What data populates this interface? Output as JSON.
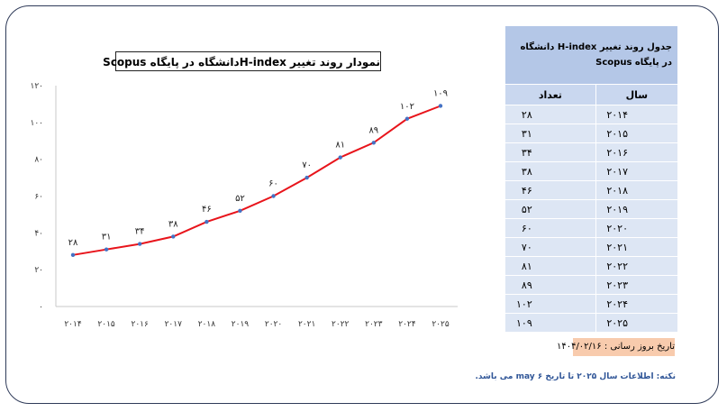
{
  "chart_data": {
    "type": "line",
    "title": "نمودار روند تغییر  H-indexدانشگاه در پایگاه Scopus",
    "categories": [
      "۲۰۱۴",
      "۲۰۱۵",
      "۲۰۱۶",
      "۲۰۱۷",
      "۲۰۱۸",
      "۲۰۱۹",
      "۲۰۲۰",
      "۲۰۲۱",
      "۲۰۲۲",
      "۲۰۲۳",
      "۲۰۲۴",
      "۲۰۲۵"
    ],
    "values": [
      28,
      31,
      34,
      38,
      46,
      52,
      60,
      70,
      81,
      89,
      102,
      109
    ],
    "value_labels": [
      "۲۸",
      "۳۱",
      "۳۴",
      "۳۸",
      "۴۶",
      "۵۲",
      "۶۰",
      "۷۰",
      "۸۱",
      "۸۹",
      "۱۰۲",
      "۱۰۹"
    ],
    "ylim": [
      0,
      120
    ],
    "yticks": [
      0,
      20,
      40,
      60,
      80,
      100,
      120
    ],
    "ytick_labels": [
      "۰",
      "۲۰",
      "۴۰",
      "۶۰",
      "۸۰",
      "۱۰۰",
      "۱۲۰"
    ],
    "line_color": "#e8141b",
    "marker_color": "#4472c4",
    "grid": false
  },
  "table": {
    "title": "جدول روند تغییر H-index دانشگاه در پایگاه Scopus",
    "col_year": "سال",
    "col_count": "تعداد",
    "rows": [
      {
        "year": "۲۰۱۴",
        "count": "۲۸"
      },
      {
        "year": "۲۰۱۵",
        "count": "۳۱"
      },
      {
        "year": "۲۰۱۶",
        "count": "۳۴"
      },
      {
        "year": "۲۰۱۷",
        "count": "۳۸"
      },
      {
        "year": "۲۰۱۸",
        "count": "۴۶"
      },
      {
        "year": "۲۰۱۹",
        "count": "۵۲"
      },
      {
        "year": "۲۰۲۰",
        "count": "۶۰"
      },
      {
        "year": "۲۰۲۱",
        "count": "۷۰"
      },
      {
        "year": "۲۰۲۲",
        "count": "۸۱"
      },
      {
        "year": "۲۰۲۳",
        "count": "۸۹"
      },
      {
        "year": "۲۰۲۴",
        "count": "۱۰۲"
      },
      {
        "year": "۲۰۲۵",
        "count": "۱۰۹"
      }
    ],
    "header_color": "#b4c7e7",
    "row_color": "#dde6f4"
  },
  "update_label": "تاریخ بروز رسانی : ۱۴۰۴/۰۲/۱۶",
  "note": "نکته: اطلاعات سال ۲۰۲۵ تا تاریخ ۶ may می باشد."
}
